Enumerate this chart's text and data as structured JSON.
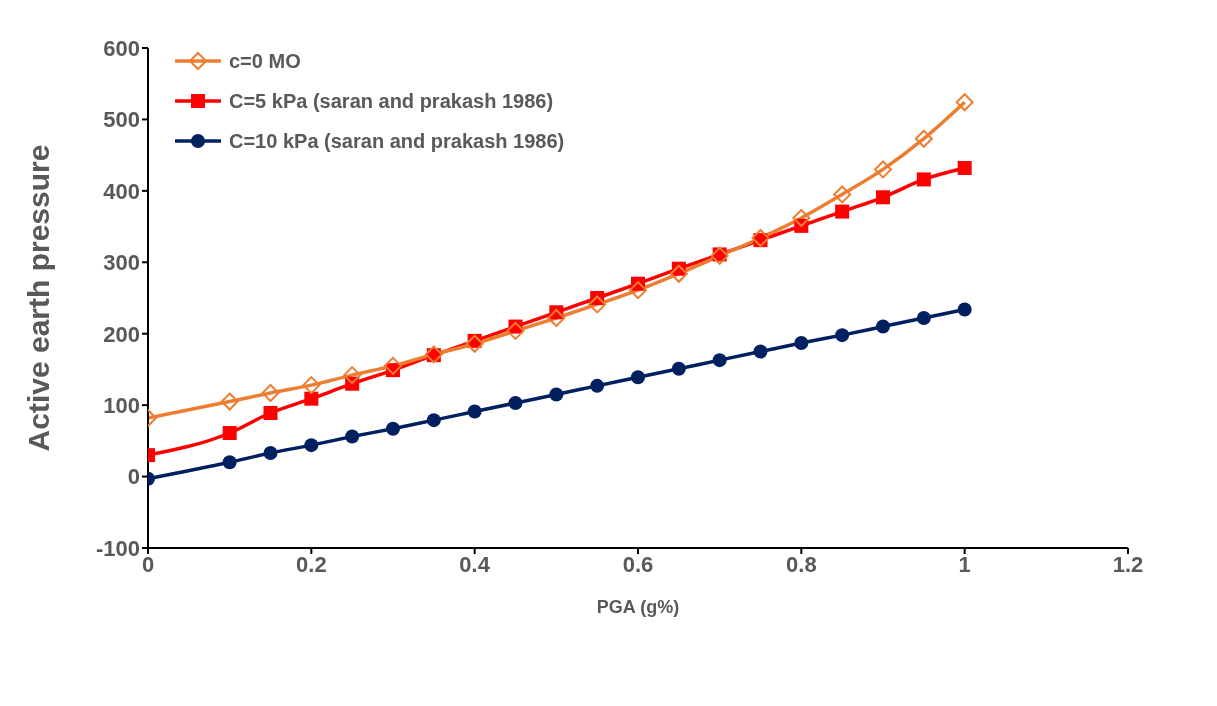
{
  "chart_data": {
    "type": "line",
    "xlabel": "PGA (g%)",
    "ylabel": "Active earth pressure",
    "x": [
      0,
      0.1,
      0.15,
      0.2,
      0.25,
      0.3,
      0.35,
      0.4,
      0.45,
      0.5,
      0.55,
      0.6,
      0.65,
      0.7,
      0.75,
      0.8,
      0.85,
      0.9,
      0.95,
      1
    ],
    "series": [
      {
        "name": "c=0 MO",
        "color": "#ed7d31",
        "marker": "diamond",
        "values": [
          82,
          105,
          117,
          128,
          142,
          155,
          171,
          186,
          204,
          222,
          241,
          261,
          284,
          309,
          334,
          362,
          395,
          430,
          473,
          524
        ]
      },
      {
        "name": "C=5 kPa (saran and prakash 1986)",
        "color": "#ff0000",
        "marker": "square",
        "values": [
          30,
          61,
          89,
          109,
          130,
          149,
          170,
          190,
          210,
          230,
          250,
          270,
          291,
          311,
          331,
          351,
          371,
          391,
          416,
          432
        ]
      },
      {
        "name": "C=10 kPa (saran and prakash 1986)",
        "color": "#002060",
        "marker": "circle",
        "values": [
          -3,
          20,
          33,
          44,
          56,
          67,
          79,
          91,
          103,
          115,
          127,
          139,
          151,
          163,
          175,
          187,
          198,
          210,
          222,
          234
        ]
      }
    ],
    "xlim": [
      0,
      1.2
    ],
    "xticks": [
      0,
      0.2,
      0.4,
      0.6,
      0.8,
      1,
      1.2
    ],
    "ylim": [
      -100,
      600
    ],
    "yticks": [
      -100,
      0,
      100,
      200,
      300,
      400,
      500,
      600
    ],
    "grid": false,
    "legend": "top left"
  }
}
